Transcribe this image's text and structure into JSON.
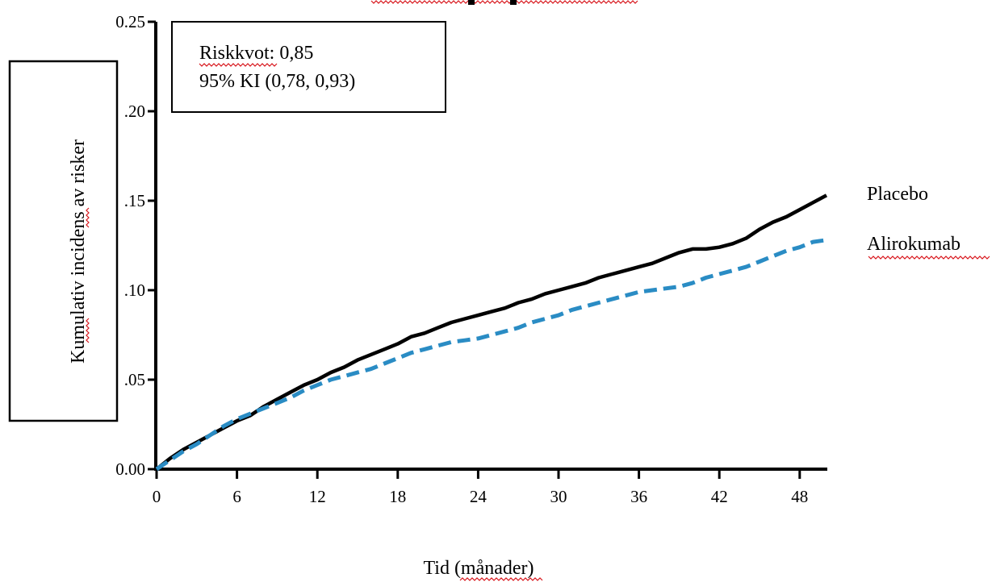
{
  "chart_data": {
    "type": "line",
    "title": "",
    "xlabel": "Tid (månader)",
    "ylabel": "Kumulativ incidens av risker",
    "xlim": [
      0,
      50
    ],
    "ylim": [
      0,
      0.25
    ],
    "x_ticks": [
      0,
      6,
      12,
      18,
      24,
      30,
      36,
      42,
      48
    ],
    "x_tick_labels": [
      "0",
      "6",
      "12",
      "18",
      "24",
      "30",
      "36",
      "42",
      "48"
    ],
    "y_ticks": [
      0,
      0.05,
      0.1,
      0.15,
      0.2,
      0.25
    ],
    "y_tick_labels": [
      "0.00",
      ".05",
      ".10",
      ".15",
      ".20",
      "0.25"
    ],
    "grid": false,
    "annotation": {
      "line1": "Riskkvot: 0,85",
      "line2": "95% KI (0,78, 0,93)"
    },
    "series": [
      {
        "name": "Placebo",
        "color": "#000000",
        "style": "solid",
        "x": [
          0,
          1,
          2,
          3,
          4,
          5,
          6,
          7,
          8,
          9,
          10,
          11,
          12,
          13,
          14,
          15,
          16,
          17,
          18,
          19,
          20,
          21,
          22,
          23,
          24,
          25,
          26,
          27,
          28,
          29,
          30,
          31,
          32,
          33,
          34,
          35,
          36,
          37,
          38,
          39,
          40,
          41,
          42,
          43,
          44,
          45,
          46,
          47,
          48,
          49,
          50
        ],
        "y": [
          0,
          0.006,
          0.011,
          0.015,
          0.019,
          0.023,
          0.027,
          0.03,
          0.035,
          0.039,
          0.043,
          0.047,
          0.05,
          0.054,
          0.057,
          0.061,
          0.064,
          0.067,
          0.07,
          0.074,
          0.076,
          0.079,
          0.082,
          0.084,
          0.086,
          0.088,
          0.09,
          0.093,
          0.095,
          0.098,
          0.1,
          0.102,
          0.104,
          0.107,
          0.109,
          0.111,
          0.113,
          0.115,
          0.118,
          0.121,
          0.123,
          0.123,
          0.124,
          0.126,
          0.129,
          0.134,
          0.138,
          0.141,
          0.145,
          0.149,
          0.153
        ]
      },
      {
        "name": "Alirokumab",
        "color": "#2a8cc4",
        "style": "dashed",
        "x": [
          0,
          1,
          2,
          3,
          4,
          5,
          6,
          7,
          8,
          9,
          10,
          11,
          12,
          13,
          14,
          15,
          16,
          17,
          18,
          19,
          20,
          21,
          22,
          23,
          24,
          25,
          26,
          27,
          28,
          29,
          30,
          31,
          32,
          33,
          34,
          35,
          36,
          37,
          38,
          39,
          40,
          41,
          42,
          43,
          44,
          45,
          46,
          47,
          48,
          49,
          50
        ],
        "y": [
          0,
          0.005,
          0.01,
          0.014,
          0.019,
          0.024,
          0.028,
          0.031,
          0.034,
          0.037,
          0.04,
          0.044,
          0.047,
          0.05,
          0.052,
          0.054,
          0.056,
          0.059,
          0.062,
          0.065,
          0.067,
          0.069,
          0.071,
          0.072,
          0.073,
          0.075,
          0.077,
          0.079,
          0.082,
          0.084,
          0.086,
          0.089,
          0.091,
          0.093,
          0.095,
          0.097,
          0.099,
          0.1,
          0.101,
          0.102,
          0.104,
          0.107,
          0.109,
          0.111,
          0.113,
          0.116,
          0.119,
          0.122,
          0.124,
          0.127,
          0.128
        ]
      }
    ]
  }
}
